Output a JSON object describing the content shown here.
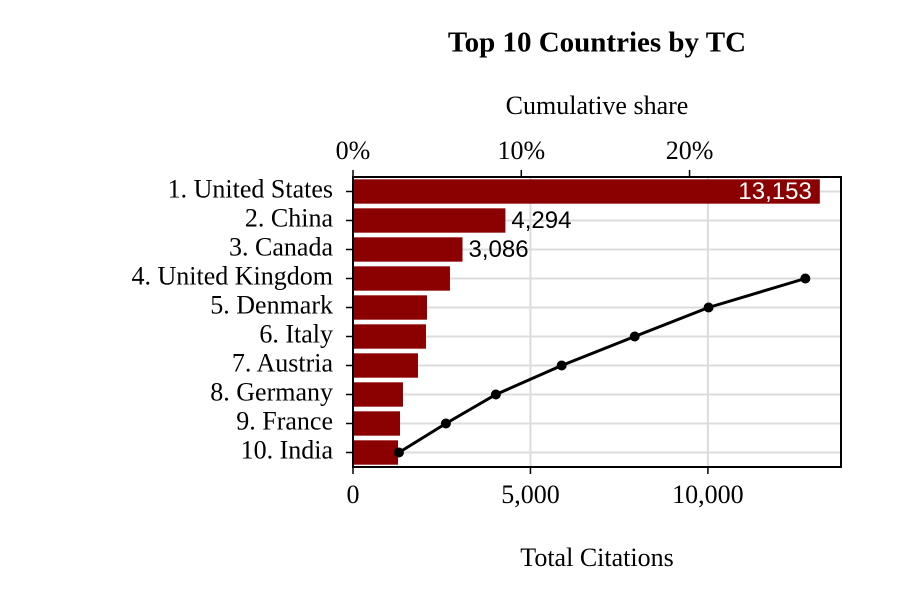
{
  "chart_data": {
    "type": "hbar",
    "title": "Top 10 Countries by TC",
    "xlabel": "Total Citations",
    "x2label": "Cumulative share",
    "categories": [
      "1. United States",
      "2. China",
      "3. Canada",
      "4. United Kingdom",
      "5. Denmark",
      "6. Italy",
      "7. Austria",
      "8. Germany",
      "9. France",
      "10. India"
    ],
    "values": [
      13153,
      4294,
      3086,
      2732,
      2085,
      2056,
      1831,
      1408,
      1324,
      1268
    ],
    "value_labels": [
      "13,153",
      "4,294",
      "3,086",
      null,
      null,
      null,
      null,
      null,
      null,
      null
    ],
    "color": "#8b0000",
    "xlim": [
      0,
      13750
    ],
    "xticks": [
      0,
      {
        "value": 5000,
        "label": "5,000"
      },
      {
        "value": 10000,
        "label": "10,000"
      }
    ],
    "x2lim": [
      0,
      29
    ],
    "x2ticks": [
      {
        "value": 0,
        "label": "0%"
      },
      {
        "value": 10,
        "label": "10%"
      },
      {
        "value": 20,
        "label": "20%"
      }
    ],
    "grid": true,
    "line": {
      "axis": "x2",
      "color": "#000000",
      "values": [
        null,
        null,
        null,
        26.88,
        21.13,
        16.74,
        12.4,
        8.49,
        5.52,
        2.73
      ]
    }
  }
}
